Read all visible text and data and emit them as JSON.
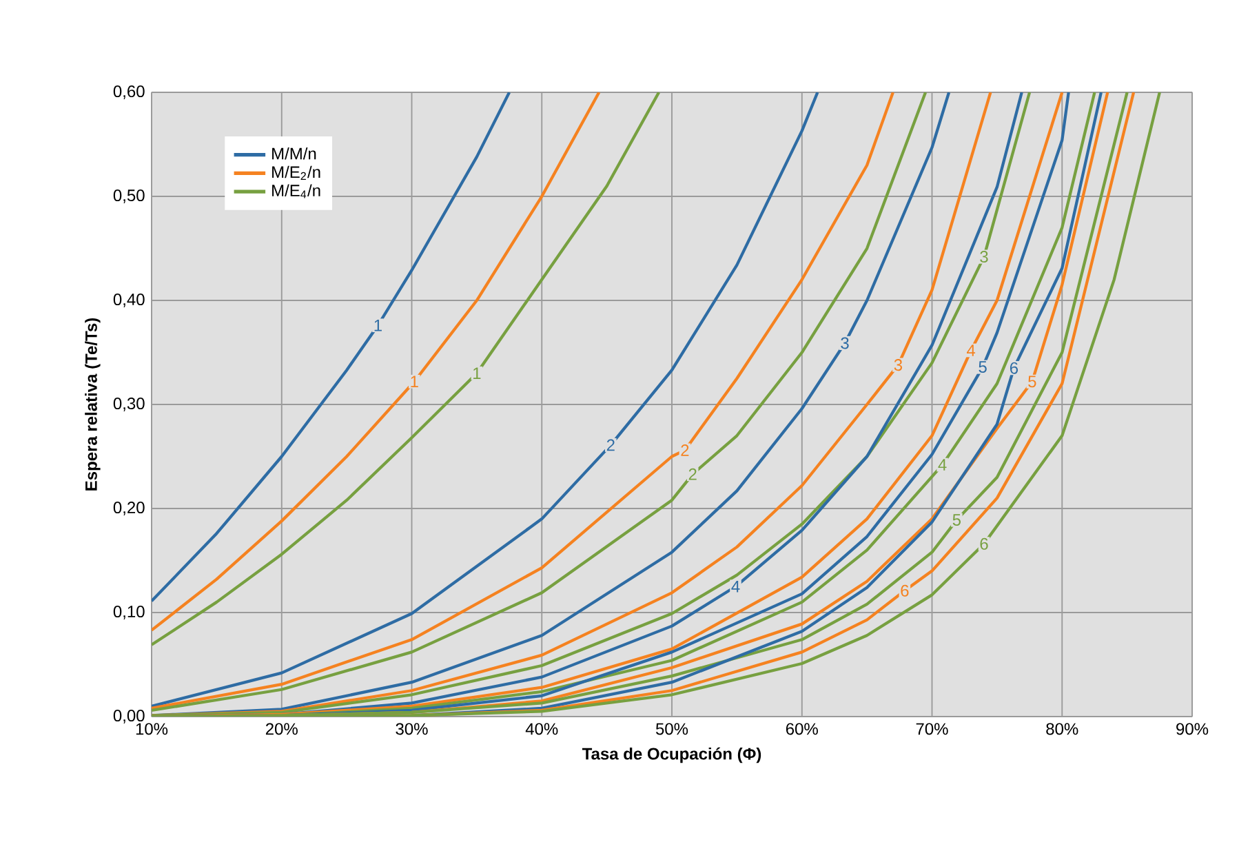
{
  "chart_data": {
    "type": "line",
    "xlabel": "Tasa de Ocupación (Φ)",
    "ylabel": "Espera relativa (Te/Ts)",
    "xlim": [
      10,
      90
    ],
    "ylim": [
      0,
      0.6
    ],
    "xticks": [
      {
        "value": 10,
        "label": "10%"
      },
      {
        "value": 20,
        "label": "20%"
      },
      {
        "value": 30,
        "label": "30%"
      },
      {
        "value": 40,
        "label": "40%"
      },
      {
        "value": 50,
        "label": "50%"
      },
      {
        "value": 60,
        "label": "60%"
      },
      {
        "value": 70,
        "label": "70%"
      },
      {
        "value": 80,
        "label": "80%"
      },
      {
        "value": 90,
        "label": "90%"
      }
    ],
    "yticks": [
      {
        "value": 0,
        "label": "0,00"
      },
      {
        "value": 0.1,
        "label": "0,10"
      },
      {
        "value": 0.2,
        "label": "0,20"
      },
      {
        "value": 0.3,
        "label": "0,30"
      },
      {
        "value": 0.4,
        "label": "0,40"
      },
      {
        "value": 0.5,
        "label": "0,50"
      },
      {
        "value": 0.6,
        "label": "0,60"
      }
    ],
    "grid": true,
    "legend": "top left",
    "marker": "none",
    "line_style": "solid",
    "series": [
      {
        "name": "M/M/n",
        "color": "#2e6ca4",
        "x": [
          10,
          15,
          20,
          25,
          27.4,
          30,
          35,
          37.5
        ],
        "values": [
          0.111,
          0.176,
          0.25,
          0.333,
          0.376,
          0.429,
          0.538,
          0.6
        ]
      },
      {
        "name": "M/E$_{2}$/n",
        "color": "#f58220",
        "x": [
          10,
          15,
          20,
          25,
          30.2,
          35,
          40,
          44.4
        ],
        "values": [
          0.083,
          0.132,
          0.188,
          0.25,
          0.322,
          0.4,
          0.5,
          0.6
        ]
      },
      {
        "name": "M/E$_{4}$/n",
        "color": "#77a040",
        "x": [
          10,
          15,
          20,
          25,
          30,
          35,
          40,
          45,
          49
        ],
        "values": [
          0.069,
          0.11,
          0.156,
          0.208,
          0.268,
          0.33,
          0.42,
          0.51,
          0.6
        ]
      },
      {
        "color": "#2e6ca4",
        "x": [
          10,
          20,
          30,
          40,
          45.3,
          50,
          55,
          60,
          61.2
        ],
        "values": [
          0.01,
          0.042,
          0.099,
          0.19,
          0.261,
          0.333,
          0.434,
          0.563,
          0.6
        ]
      },
      {
        "color": "#f58220",
        "x": [
          10,
          20,
          30,
          40,
          50,
          51,
          55,
          60,
          65,
          67
        ],
        "values": [
          0.008,
          0.031,
          0.074,
          0.143,
          0.25,
          0.256,
          0.325,
          0.42,
          0.53,
          0.6
        ]
      },
      {
        "color": "#77a040",
        "x": [
          10,
          20,
          30,
          40,
          50,
          51.6,
          55,
          60,
          65,
          69.5
        ],
        "values": [
          0.006,
          0.026,
          0.062,
          0.119,
          0.208,
          0.233,
          0.27,
          0.35,
          0.45,
          0.6
        ]
      },
      {
        "color": "#2e6ca4",
        "x": [
          10,
          20,
          30,
          40,
          50,
          55,
          60,
          63.3,
          65,
          70,
          71.3
        ],
        "values": [
          0.001,
          0.007,
          0.033,
          0.078,
          0.158,
          0.217,
          0.296,
          0.359,
          0.4,
          0.547,
          0.6
        ]
      },
      {
        "color": "#f58220",
        "x": [
          10,
          20,
          30,
          40,
          50,
          55,
          60,
          65,
          67.4,
          70,
          74.5
        ],
        "values": [
          0.001,
          0.005,
          0.025,
          0.059,
          0.119,
          0.163,
          0.222,
          0.3,
          0.338,
          0.41,
          0.6
        ]
      },
      {
        "color": "#77a040",
        "x": [
          10,
          20,
          30,
          40,
          50,
          55,
          60,
          65,
          70,
          74,
          77.5
        ],
        "values": [
          0.001,
          0.004,
          0.021,
          0.049,
          0.099,
          0.136,
          0.185,
          0.25,
          0.34,
          0.442,
          0.6
        ]
      },
      {
        "color": "#2e6ca4",
        "x": [
          10,
          20,
          30,
          40,
          50,
          54.9,
          60,
          65,
          70,
          75,
          76.9
        ],
        "values": [
          0,
          0.002,
          0.013,
          0.038,
          0.087,
          0.125,
          0.179,
          0.25,
          0.357,
          0.509,
          0.6
        ]
      },
      {
        "color": "#f58220",
        "x": [
          10,
          20,
          30,
          40,
          50,
          60,
          65,
          70,
          73,
          75,
          80
        ],
        "values": [
          0,
          0.002,
          0.01,
          0.028,
          0.065,
          0.134,
          0.19,
          0.27,
          0.352,
          0.4,
          0.6
        ]
      },
      {
        "color": "#77a040",
        "x": [
          10,
          20,
          30,
          40,
          50,
          60,
          65,
          70.8,
          75,
          80,
          82.5
        ],
        "values": [
          0,
          0.001,
          0.008,
          0.024,
          0.054,
          0.11,
          0.16,
          0.242,
          0.32,
          0.47,
          0.6
        ]
      },
      {
        "color": "#2e6ca4",
        "x": [
          10,
          20,
          30,
          40,
          50,
          60,
          65,
          70,
          73.9,
          75,
          80,
          80.5
        ],
        "values": [
          0,
          0.001,
          0.006,
          0.02,
          0.062,
          0.118,
          0.173,
          0.252,
          0.336,
          0.369,
          0.554,
          0.6
        ]
      },
      {
        "color": "#f58220",
        "x": [
          10,
          20,
          30,
          40,
          50,
          60,
          65,
          70,
          75,
          77.7,
          80,
          83.5
        ],
        "values": [
          0,
          0.001,
          0.004,
          0.015,
          0.047,
          0.089,
          0.13,
          0.19,
          0.277,
          0.322,
          0.415,
          0.6
        ]
      },
      {
        "color": "#77a040",
        "x": [
          10,
          20,
          30,
          40,
          50,
          60,
          65,
          70,
          71.9,
          75,
          80,
          85
        ],
        "values": [
          0,
          0.001,
          0.004,
          0.013,
          0.039,
          0.074,
          0.108,
          0.158,
          0.189,
          0.23,
          0.35,
          0.6
        ]
      },
      {
        "color": "#2e6ca4",
        "x": [
          10,
          30,
          40,
          50,
          60,
          65,
          70,
          75,
          76.3,
          80,
          83
        ],
        "values": [
          0,
          0.001,
          0.008,
          0.033,
          0.082,
          0.124,
          0.187,
          0.281,
          0.335,
          0.431,
          0.6
        ]
      },
      {
        "color": "#f58220",
        "x": [
          10,
          30,
          40,
          50,
          60,
          65,
          67.9,
          70,
          75,
          80,
          85.5
        ],
        "values": [
          0,
          0.001,
          0.006,
          0.025,
          0.062,
          0.093,
          0.121,
          0.14,
          0.21,
          0.32,
          0.6
        ]
      },
      {
        "color": "#77a040",
        "x": [
          10,
          30,
          40,
          50,
          60,
          65,
          70,
          74,
          80,
          84,
          87.5
        ],
        "values": [
          0,
          0.001,
          0.005,
          0.021,
          0.051,
          0.078,
          0.117,
          0.166,
          0.27,
          0.42,
          0.6
        ]
      }
    ],
    "annotations": [
      {
        "text": "1",
        "x": 27.4,
        "y": 0.376
      },
      {
        "text": "1",
        "x": 30.2,
        "y": 0.322
      },
      {
        "text": "1",
        "x": 35,
        "y": 0.33
      },
      {
        "text": "2",
        "x": 45.3,
        "y": 0.261
      },
      {
        "text": "2",
        "x": 51,
        "y": 0.256
      },
      {
        "text": "2",
        "x": 51.6,
        "y": 0.233
      },
      {
        "text": "3",
        "x": 63.3,
        "y": 0.359
      },
      {
        "text": "3",
        "x": 67.4,
        "y": 0.338
      },
      {
        "text": "3",
        "x": 74,
        "y": 0.442
      },
      {
        "text": "4",
        "x": 54.9,
        "y": 0.125
      },
      {
        "text": "4",
        "x": 73,
        "y": 0.352
      },
      {
        "text": "4",
        "x": 70.8,
        "y": 0.242
      },
      {
        "text": "5",
        "x": 73.9,
        "y": 0.336
      },
      {
        "text": "5",
        "x": 77.7,
        "y": 0.322
      },
      {
        "text": "5",
        "x": 71.9,
        "y": 0.189
      },
      {
        "text": "6",
        "x": 76.3,
        "y": 0.335
      },
      {
        "text": "6",
        "x": 67.9,
        "y": 0.121
      },
      {
        "text": "6",
        "x": 74,
        "y": 0.166
      }
    ]
  }
}
